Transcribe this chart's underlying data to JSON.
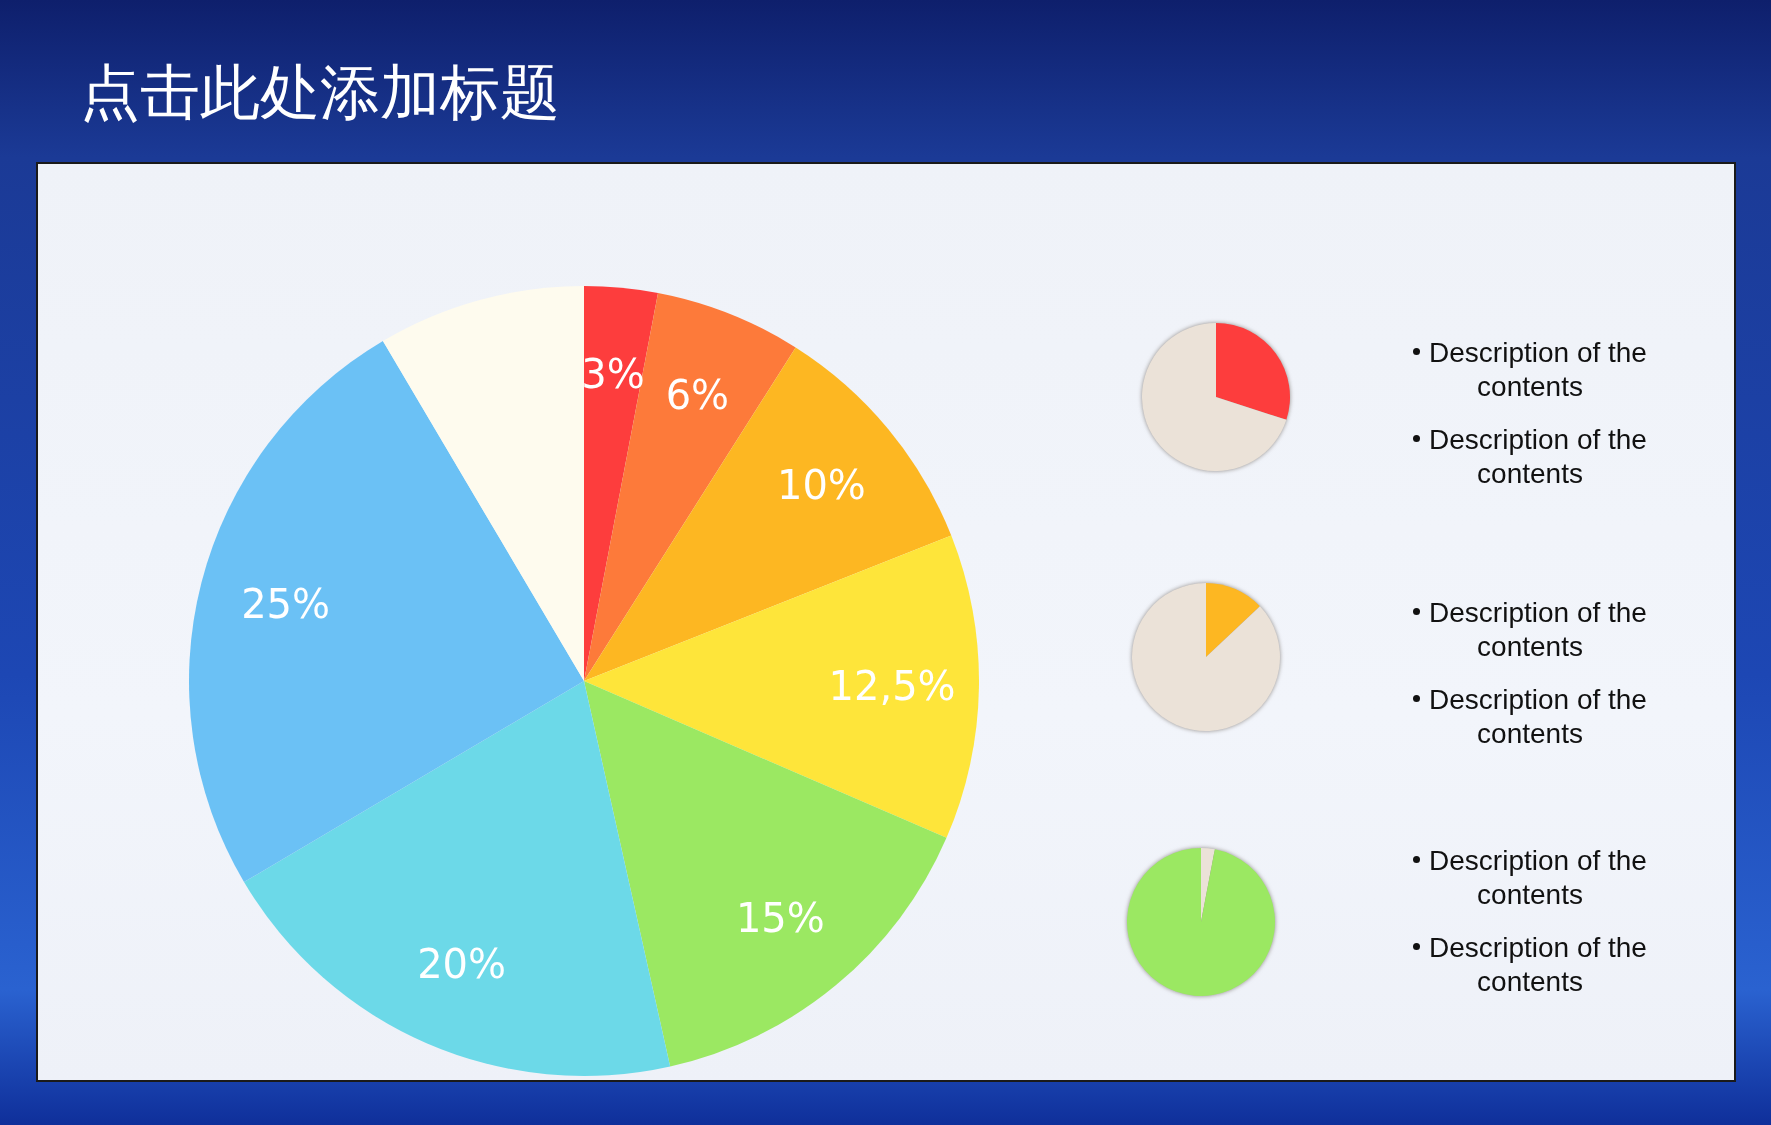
{
  "chart_data": [
    {
      "type": "pie",
      "title": "点击此处添加标题",
      "categories": [
        null,
        null,
        null,
        null,
        null,
        null,
        null,
        null
      ],
      "values": [
        3,
        6,
        10,
        12.5,
        15,
        20,
        25,
        8.5
      ],
      "colors": [
        "#fd3d3d",
        "#fd7a3a",
        "#fdb722",
        "#fee53a",
        "#9be862",
        "#6cd9e8",
        "#6bc1f5",
        "#fefbee"
      ],
      "value_labels": [
        "3%",
        "6%",
        "10%",
        "12,5%",
        "15%",
        "20%",
        "25%",
        null
      ]
    },
    {
      "type": "pie",
      "categories": [
        null,
        null
      ],
      "values": [
        30,
        70
      ],
      "colors": [
        "#fd3d3d",
        "#ebe2d8"
      ],
      "annotations": [
        "Description of the contents",
        "Description of the contents"
      ]
    },
    {
      "type": "pie",
      "categories": [
        null,
        null
      ],
      "values": [
        13,
        87
      ],
      "colors": [
        "#fdb722",
        "#ebe2d8"
      ],
      "annotations": [
        "Description of the contents",
        "Description of the contents"
      ]
    },
    {
      "type": "pie",
      "categories": [
        null,
        null
      ],
      "values": [
        3,
        97
      ],
      "colors": [
        "#ebe2d8",
        "#9be862"
      ],
      "annotations": [
        "Description of the contents",
        "Description of the contents"
      ]
    }
  ]
}
